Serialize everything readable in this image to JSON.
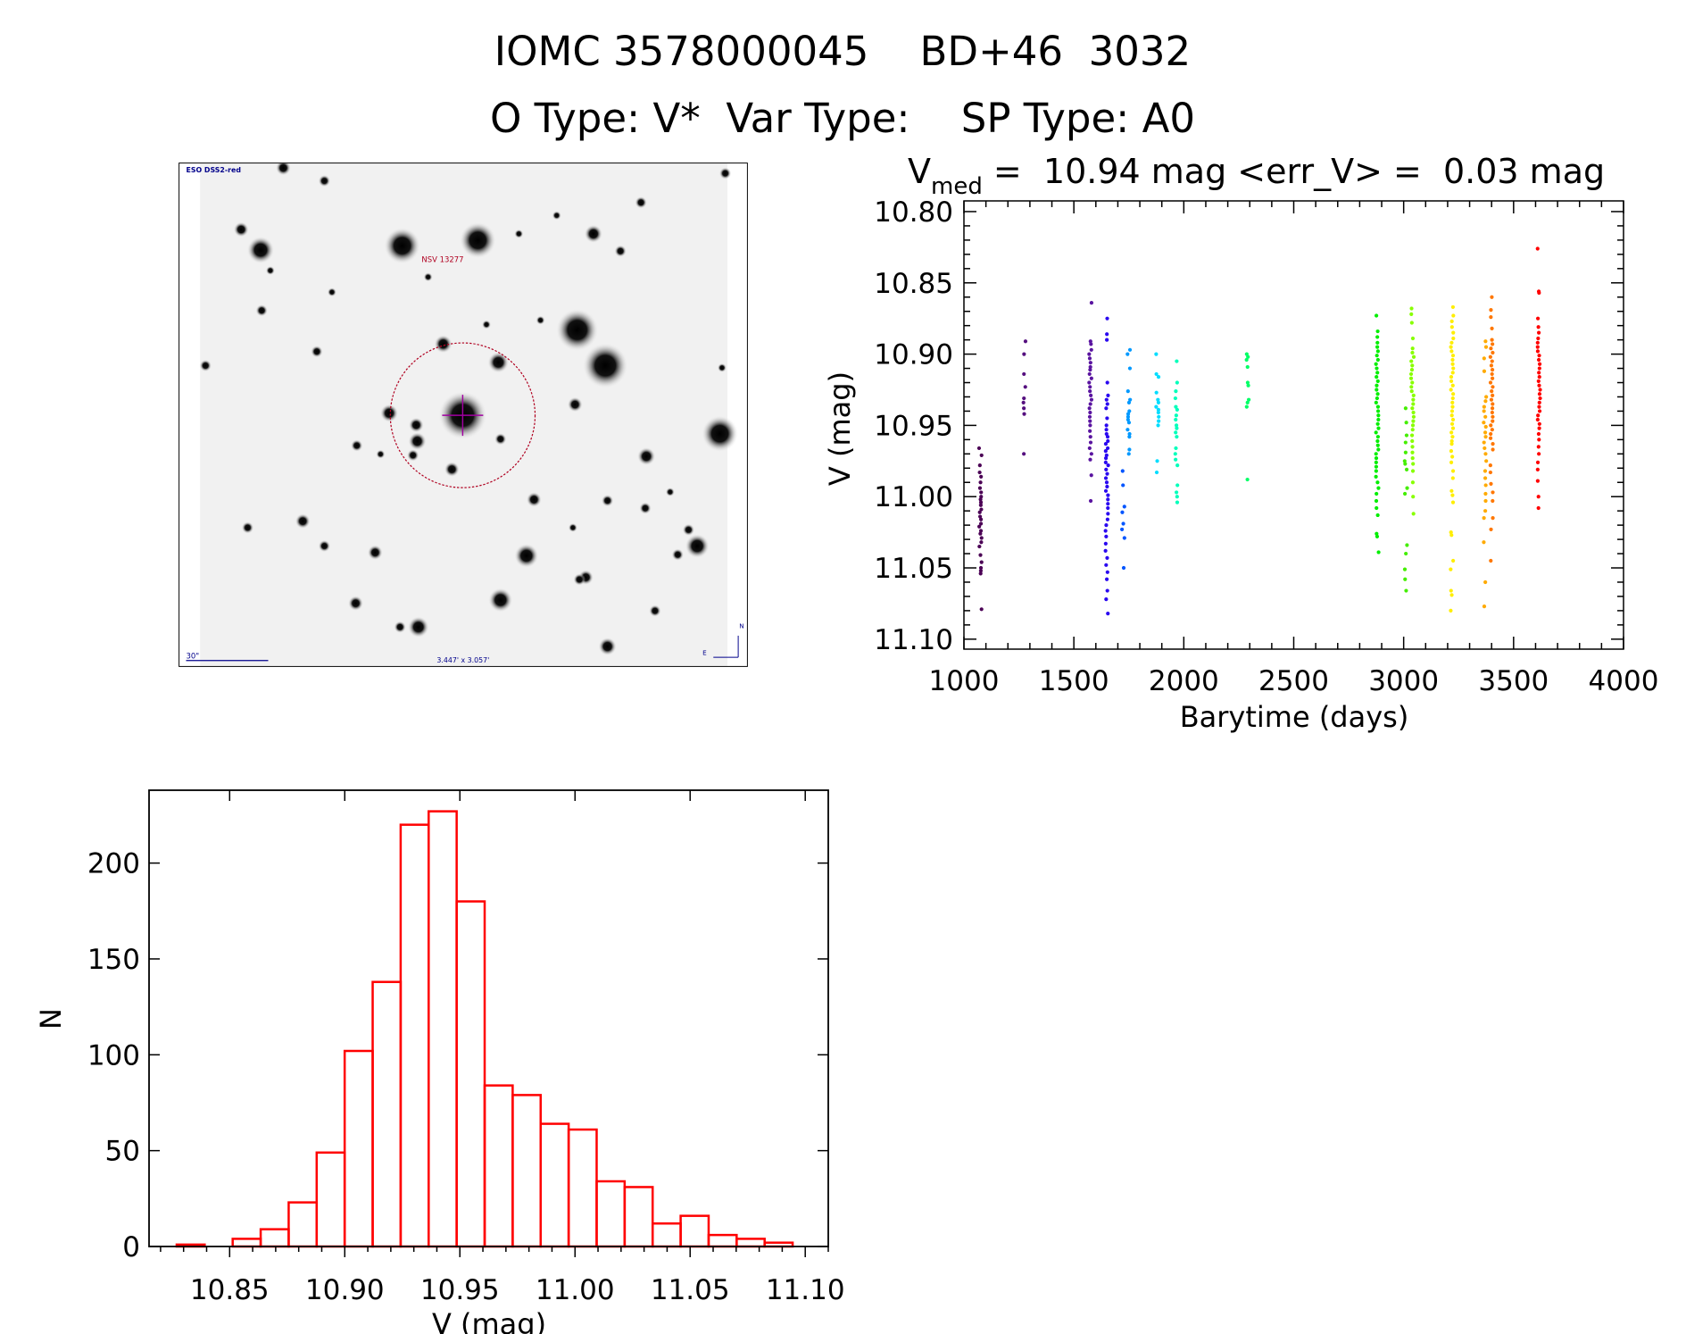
{
  "header": {
    "title": "IOMC 3578000045    BD+46  3032",
    "subtitle": "O Type: V*  Var Type:    SP Type: A0"
  },
  "finder_chart": {
    "survey_label": "ESO DSS2-red",
    "target_label": "NSV 13277",
    "scale_label": "30\"",
    "field_size_label": "3.447' x 3.057'",
    "north_label": "N",
    "east_label": "E",
    "target_circle_color": "#b00020",
    "crosshair_color": "#a000a0",
    "label_color": "#00008b"
  },
  "chart_data": [
    {
      "type": "scatter",
      "title_main": "V",
      "title_sub": "med",
      "title_rest": " =  10.94 mag <err_V> =  0.03 mag",
      "xlabel": "Barytime (days)",
      "ylabel": "V (mag)",
      "xlim": [
        1000,
        4000
      ],
      "ylim": [
        11.107,
        10.7925
      ],
      "y_inverted": true,
      "xticks": [
        "1000",
        "1500",
        "2000",
        "2500",
        "3000",
        "3500",
        "4000"
      ],
      "yticks": [
        "10.80",
        "10.85",
        "10.90",
        "10.95",
        "11.00",
        "11.05",
        "11.10"
      ],
      "series": [
        {
          "x": 1075,
          "color": "#4b0055",
          "values": [
            10.966,
            10.971,
            10.978,
            10.983,
            10.986,
            10.99,
            10.994,
            10.997,
            11.0,
            11.002,
            11.004,
            11.006,
            11.009,
            11.011,
            11.014,
            11.016,
            11.019,
            11.021,
            11.024,
            11.026,
            11.029,
            11.032,
            11.035,
            11.041,
            11.046,
            11.05,
            11.052,
            11.054,
            11.079
          ]
        },
        {
          "x": 1275,
          "color": "#55107f",
          "values": [
            10.891,
            10.9,
            10.914,
            10.923,
            10.931,
            10.934,
            10.938,
            10.942,
            10.97
          ]
        },
        {
          "x": 1575,
          "color": "#5a14a0",
          "values": [
            10.864,
            10.891,
            10.893,
            10.897,
            10.9,
            10.903,
            10.906,
            10.909,
            10.911,
            10.914,
            10.917,
            10.92,
            10.923,
            10.926,
            10.929,
            10.932,
            10.935,
            10.938,
            10.941,
            10.944,
            10.947,
            10.95,
            10.954,
            10.958,
            10.962,
            10.966,
            10.97,
            10.974,
            10.985,
            11.003
          ]
        },
        {
          "x": 1650,
          "color": "#2a08f0",
          "values": [
            10.875,
            10.886,
            10.89,
            10.92,
            10.929,
            10.932,
            10.935,
            10.938,
            10.945,
            10.95,
            10.953,
            10.956,
            10.958,
            10.961,
            10.963,
            10.966,
            10.968,
            10.971,
            10.973,
            10.976,
            10.978,
            10.981,
            10.984,
            10.987,
            10.99,
            10.993,
            10.996,
            10.999,
            11.002,
            11.005,
            11.008,
            11.012,
            11.016,
            11.02,
            11.024,
            11.028,
            11.033,
            11.038,
            11.043,
            11.048,
            11.053,
            11.058,
            11.066,
            11.072,
            11.082
          ]
        },
        {
          "x": 1725,
          "color": "#0055ff",
          "values": [
            10.982,
            10.992,
            11.007,
            11.011,
            11.019,
            11.023,
            11.029,
            11.05
          ]
        },
        {
          "x": 1750,
          "color": "#0099ff",
          "values": [
            10.897,
            10.9,
            10.91,
            10.926,
            10.932,
            10.934,
            10.94,
            10.942,
            10.944,
            10.946,
            10.948,
            10.953,
            10.956,
            10.958,
            10.967,
            10.97
          ]
        },
        {
          "x": 1880,
          "color": "#00ddff",
          "values": [
            10.9,
            10.914,
            10.916,
            10.927,
            10.932,
            10.934,
            10.937,
            10.939,
            10.941,
            10.944,
            10.947,
            10.95,
            10.975,
            10.983
          ]
        },
        {
          "x": 1965,
          "color": "#00ffbb",
          "values": [
            10.905,
            10.92,
            10.926,
            10.931,
            10.937,
            10.939,
            10.943,
            10.946,
            10.95,
            10.952,
            10.955,
            10.958,
            10.966,
            10.97,
            10.974,
            10.978,
            10.992,
            10.997,
            11.0,
            11.004
          ]
        },
        {
          "x": 2290,
          "color": "#00ff66",
          "values": [
            10.9,
            10.902,
            10.904,
            10.909,
            10.92,
            10.922,
            10.932,
            10.934,
            10.937,
            10.988
          ]
        },
        {
          "x": 2880,
          "color": "#00ee00",
          "values": [
            10.873,
            10.884,
            10.888,
            10.892,
            10.895,
            10.898,
            10.901,
            10.904,
            10.907,
            10.91,
            10.913,
            10.916,
            10.919,
            10.922,
            10.925,
            10.928,
            10.931,
            10.934,
            10.937,
            10.94,
            10.943,
            10.946,
            10.949,
            10.952,
            10.955,
            10.958,
            10.961,
            10.964,
            10.967,
            10.97,
            10.973,
            10.976,
            10.979,
            10.982,
            10.986,
            10.99,
            10.994,
            10.998,
            11.003,
            11.008,
            11.013,
            11.026,
            11.028,
            11.039
          ]
        },
        {
          "x": 3010,
          "color": "#44ee00",
          "values": [
            10.938,
            10.948,
            10.957,
            10.962,
            10.969,
            10.975,
            10.977,
            10.981,
            10.994,
            10.998,
            11.034,
            11.04,
            11.051,
            11.058,
            11.066
          ]
        },
        {
          "x": 3040,
          "color": "#88ff00",
          "values": [
            10.868,
            10.872,
            10.878,
            10.889,
            10.896,
            10.899,
            10.902,
            10.905,
            10.908,
            10.911,
            10.914,
            10.917,
            10.92,
            10.923,
            10.926,
            10.929,
            10.932,
            10.935,
            10.938,
            10.941,
            10.944,
            10.947,
            10.95,
            10.953,
            10.957,
            10.961,
            10.965,
            10.969,
            10.973,
            10.977,
            10.982,
            10.99,
            11.0,
            11.012
          ]
        },
        {
          "x": 3220,
          "color": "#ffee00",
          "values": [
            10.867,
            10.873,
            10.877,
            10.881,
            10.885,
            10.889,
            10.892,
            10.895,
            10.898,
            10.901,
            10.904,
            10.907,
            10.91,
            10.913,
            10.916,
            10.919,
            10.922,
            10.925,
            10.928,
            10.931,
            10.934,
            10.937,
            10.94,
            10.943,
            10.946,
            10.949,
            10.952,
            10.955,
            10.958,
            10.961,
            10.963,
            10.968,
            10.972,
            10.976,
            10.982,
            10.987,
            10.996,
            10.999,
            11.004,
            11.025,
            11.027,
            11.045,
            11.051,
            11.066,
            11.069,
            11.08
          ]
        },
        {
          "x": 3370,
          "color": "#ffaa00",
          "values": [
            10.891,
            10.895,
            10.903,
            10.912,
            10.93,
            10.933,
            10.937,
            10.94,
            10.944,
            10.948,
            10.951,
            10.955,
            10.958,
            10.962,
            10.966,
            10.97,
            10.975,
            10.982,
            10.987,
            10.992,
            10.998,
            11.003,
            11.01,
            11.015,
            11.032,
            11.06,
            11.077
          ]
        },
        {
          "x": 3400,
          "color": "#ff7700",
          "values": [
            10.86,
            10.869,
            10.874,
            10.882,
            10.89,
            10.893,
            10.896,
            10.899,
            10.902,
            10.905,
            10.908,
            10.911,
            10.914,
            10.917,
            10.92,
            10.923,
            10.926,
            10.929,
            10.932,
            10.935,
            10.938,
            10.941,
            10.944,
            10.947,
            10.95,
            10.953,
            10.956,
            10.959,
            10.963,
            10.967,
            10.978,
            10.983,
            10.991,
            10.997,
            11.003,
            11.015,
            11.023,
            11.045
          ]
        },
        {
          "x": 3615,
          "color": "#ff0000",
          "values": [
            10.826,
            10.856,
            10.857,
            10.875,
            10.881,
            10.885,
            10.889,
            10.892,
            10.895,
            10.898,
            10.901,
            10.904,
            10.907,
            10.91,
            10.913,
            10.916,
            10.919,
            10.922,
            10.925,
            10.928,
            10.931,
            10.934,
            10.937,
            10.94,
            10.943,
            10.946,
            10.949,
            10.952,
            10.956,
            10.96,
            10.965,
            10.97,
            10.976,
            10.981,
            10.989,
            11.0,
            11.008
          ]
        }
      ]
    },
    {
      "type": "bar",
      "histogram": true,
      "xlabel": "V (mag)",
      "ylabel": "N",
      "xlim": [
        10.815,
        11.11
      ],
      "ylim": [
        0,
        238
      ],
      "bin_start": 10.827,
      "bin_width": 0.01216,
      "values": [
        1,
        0,
        4,
        9,
        23,
        49,
        102,
        138,
        220,
        227,
        180,
        84,
        79,
        64,
        61,
        34,
        31,
        12,
        16,
        6,
        4,
        2
      ],
      "bar_color": "#ff0000",
      "xticks": [
        "10.85",
        "10.90",
        "10.95",
        "11.00",
        "11.05",
        "11.10"
      ],
      "yticks": [
        "0",
        "50",
        "100",
        "150",
        "200"
      ]
    }
  ]
}
